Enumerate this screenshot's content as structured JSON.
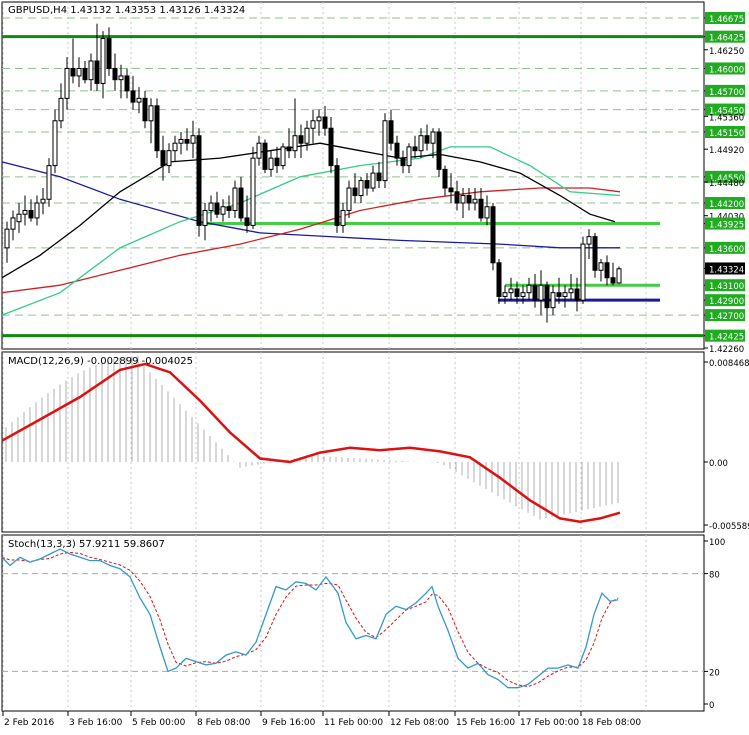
{
  "header": {
    "symbol": "GBPUSD,H4",
    "ohlc": "1.43132 1.43353 1.43126 1.43324"
  },
  "main_panel": {
    "price_labels": [
      "1.46675",
      "1.46425",
      "1.46250",
      "1.46000",
      "1.45700",
      "1.45450",
      "1.45360",
      "1.45150",
      "1.44920",
      "1.44550",
      "1.44480",
      "1.44200",
      "1.44030",
      "1.43925",
      "1.43600",
      "1.43324",
      "1.43100",
      "1.42900",
      "1.42700",
      "1.42425",
      "1.42260"
    ],
    "highlighted_levels": [
      "1.46675",
      "1.46425",
      "1.46000",
      "1.45700",
      "1.45450",
      "1.45150",
      "1.44550",
      "1.44200",
      "1.43925",
      "1.43600",
      "1.43100",
      "1.42900",
      "1.42700",
      "1.42425"
    ],
    "current_price": "1.43324"
  },
  "macd_panel": {
    "title": "MACD(12,26,9) -0.002899 -0.004025",
    "labels": [
      "0.008468",
      "0.00",
      "-0.005589"
    ]
  },
  "stoch_panel": {
    "title": "Stoch(13,3,3) 57.9211 59.8607",
    "labels": [
      "100",
      "80",
      "20",
      "0"
    ]
  },
  "time_axis": [
    "2 Feb 2016",
    "3 Feb 16:00",
    "5 Feb 00:00",
    "8 Feb 08:00",
    "9 Feb 16:00",
    "11 Feb 00:00",
    "12 Feb 08:00",
    "15 Feb 16:00",
    "17 Feb 00:00",
    "18 Feb 08:00"
  ],
  "colors": {
    "bull": "#ffffff",
    "bear": "#000000",
    "level_line": "#22aa22",
    "support_thick": "#118811",
    "ma_blue": "#1a1a9c",
    "ma_red": "#cc2222",
    "ma_green": "#33cc88",
    "ma_black": "#000000",
    "macd_signal": "#dd1111",
    "stoch_main": "#3399cc",
    "stoch_signal": "#dd1111",
    "dashed_grid": "#90c090"
  }
}
